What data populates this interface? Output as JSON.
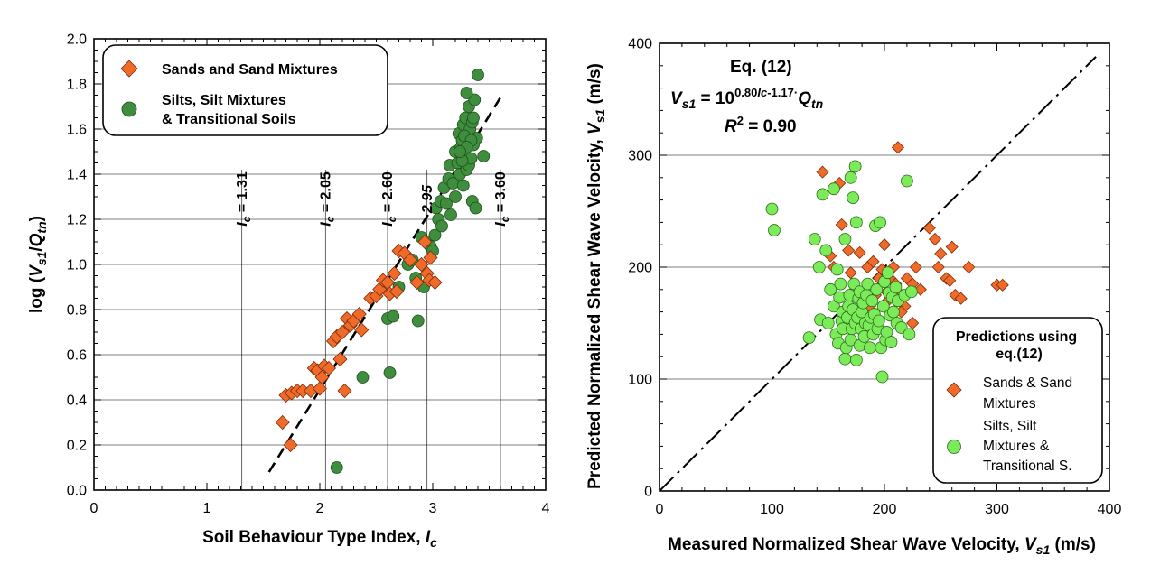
{
  "chart_data": [
    {
      "type": "scatter",
      "xlabel": "Soil Behaviour Type Index, ",
      "xlabel_sym": "I",
      "xlabel_sub": "c",
      "ylabel": "log (",
      "ylabel_sym": "V",
      "ylabel_sub": "s1",
      "ylabel_mid": "/",
      "ylabel_sym2": "Q",
      "ylabel_sub2": "tn",
      "ylabel_close": ")",
      "xlim": [
        0,
        4
      ],
      "ylim": [
        0,
        2
      ],
      "xticks": [
        "0",
        "1",
        "2",
        "3",
        "4"
      ],
      "yticks": [
        "0.0",
        "0.2",
        "0.4",
        "0.6",
        "0.8",
        "1.0",
        "1.2",
        "1.4",
        "1.6",
        "1.8",
        "2.0"
      ],
      "grid": "horizontal every 0.2 plus vertical lines at Ic boundaries",
      "legend_position": "top-left",
      "ic_lines": [
        {
          "x": 1.31,
          "label": "I",
          "sub": "c",
          "value": " = 1.31"
        },
        {
          "x": 2.05,
          "label": "I",
          "sub": "c",
          "value": " = 2.05"
        },
        {
          "x": 2.6,
          "label": "I",
          "sub": "c",
          "value": " = 2.60"
        },
        {
          "x": 2.95,
          "label": "",
          "sub": "",
          "value": "2.95"
        },
        {
          "x": 3.6,
          "label": "I",
          "sub": "c",
          "value": " = 3.60"
        }
      ],
      "trend_line": {
        "x": [
          1.55,
          3.6
        ],
        "y": [
          0.08,
          1.74
        ]
      },
      "series": [
        {
          "name": "Sands and Sand Mixtures",
          "marker": "diamond",
          "color": "#F06A2A",
          "points": [
            [
              1.67,
              0.3
            ],
            [
              1.7,
              0.42
            ],
            [
              1.74,
              0.2
            ],
            [
              1.75,
              0.43
            ],
            [
              1.8,
              0.44
            ],
            [
              1.85,
              0.44
            ],
            [
              1.92,
              0.44
            ],
            [
              1.95,
              0.54
            ],
            [
              1.98,
              0.53
            ],
            [
              2.0,
              0.45
            ],
            [
              2.02,
              0.5
            ],
            [
              2.04,
              0.55
            ],
            [
              2.08,
              0.54
            ],
            [
              2.12,
              0.66
            ],
            [
              2.15,
              0.68
            ],
            [
              2.18,
              0.58
            ],
            [
              2.2,
              0.7
            ],
            [
              2.22,
              0.44
            ],
            [
              2.24,
              0.76
            ],
            [
              2.27,
              0.73
            ],
            [
              2.3,
              0.75
            ],
            [
              2.35,
              0.78
            ],
            [
              2.37,
              0.71
            ],
            [
              2.45,
              0.85
            ],
            [
              2.5,
              0.86
            ],
            [
              2.53,
              0.89
            ],
            [
              2.56,
              0.93
            ],
            [
              2.6,
              0.92
            ],
            [
              2.62,
              0.87
            ],
            [
              2.66,
              0.96
            ],
            [
              2.68,
              0.88
            ],
            [
              2.7,
              1.06
            ],
            [
              2.75,
              1.05
            ],
            [
              2.8,
              1.02
            ],
            [
              2.86,
              0.92
            ],
            [
              2.9,
              1.0
            ],
            [
              2.93,
              1.1
            ],
            [
              2.95,
              0.96
            ],
            [
              2.97,
              0.93
            ],
            [
              2.98,
              1.03
            ],
            [
              3.02,
              0.92
            ]
          ]
        },
        {
          "name": "Silts, Silt Mixtures",
          "name2": "& Transitional Soils",
          "marker": "circle",
          "color": "#3E8E3E",
          "points": [
            [
              2.15,
              0.1
            ],
            [
              2.38,
              0.5
            ],
            [
              2.6,
              0.76
            ],
            [
              2.62,
              0.52
            ],
            [
              2.65,
              0.77
            ],
            [
              2.7,
              0.9
            ],
            [
              2.78,
              1.0
            ],
            [
              2.82,
              1.02
            ],
            [
              2.85,
              0.94
            ],
            [
              2.87,
              0.75
            ],
            [
              2.9,
              1.12
            ],
            [
              2.92,
              0.9
            ],
            [
              2.95,
              1.1
            ],
            [
              2.98,
              1.08
            ],
            [
              3.0,
              1.06
            ],
            [
              3.02,
              1.13
            ],
            [
              3.03,
              1.25
            ],
            [
              3.05,
              1.2
            ],
            [
              3.07,
              1.28
            ],
            [
              3.08,
              1.17
            ],
            [
              3.1,
              1.34
            ],
            [
              3.12,
              1.27
            ],
            [
              3.14,
              1.38
            ],
            [
              3.15,
              1.44
            ],
            [
              3.16,
              1.22
            ],
            [
              3.18,
              1.36
            ],
            [
              3.2,
              1.5
            ],
            [
              3.2,
              1.3
            ],
            [
              3.22,
              1.45
            ],
            [
              3.23,
              1.58
            ],
            [
              3.24,
              1.4
            ],
            [
              3.25,
              1.52
            ],
            [
              3.26,
              1.55
            ],
            [
              3.27,
              1.62
            ],
            [
              3.27,
              1.35
            ],
            [
              3.28,
              1.48
            ],
            [
              3.29,
              1.65
            ],
            [
              3.3,
              1.42
            ],
            [
              3.31,
              1.56
            ],
            [
              3.32,
              1.7
            ],
            [
              3.32,
              1.44
            ],
            [
              3.33,
              1.6
            ],
            [
              3.34,
              1.47
            ],
            [
              3.35,
              1.63
            ],
            [
              3.35,
              1.28
            ],
            [
              3.36,
              1.53
            ],
            [
              3.37,
              1.73
            ],
            [
              3.38,
              1.25
            ],
            [
              3.39,
              1.56
            ],
            [
              3.4,
              1.84
            ],
            [
              3.3,
              1.76
            ],
            [
              3.28,
              1.57
            ],
            [
              3.26,
              1.46
            ],
            [
              3.36,
              1.65
            ],
            [
              3.45,
              1.48
            ],
            [
              3.34,
              1.55
            ],
            [
              3.3,
              1.52
            ],
            [
              3.24,
              1.5
            ]
          ]
        }
      ]
    },
    {
      "type": "scatter",
      "xlabel": "Measured Normalized Shear Wave Velocity, ",
      "xlabel_sym": "V",
      "xlabel_sub": "s1",
      "xlabel_unit": " (m/s)",
      "ylabel": "Predicted Normalized Shear Wave Velocity, ",
      "ylabel_sym": "V",
      "ylabel_sub": "s1",
      "ylabel_unit": " (m/s)",
      "xlim": [
        0,
        400
      ],
      "ylim": [
        0,
        400
      ],
      "xticks": [
        "0",
        "100",
        "200",
        "300",
        "400"
      ],
      "yticks": [
        "0",
        "100",
        "200",
        "300",
        "400"
      ],
      "grid": "horizontal every 100",
      "one_to_one_line": true,
      "equation": {
        "title": "Eq. (12)",
        "lhs_sym": "V",
        "lhs_sub": "s1",
        "eq_main": " = 10",
        "eq_exp": "0.80",
        "eq_exp_sym": "Ic",
        "eq_exp_tail": "-1.17",
        "eq_dot": "·",
        "eq_q": "Q",
        "eq_q_sub": "tn",
        "r2_sym": "R",
        "r2_sup": "2",
        "r2_val": " = 0.90"
      },
      "legend_title": "Predictions using",
      "legend_title2": "eq.(12)",
      "legend_position": "bottom-right",
      "series": [
        {
          "name": "Sands & Sand",
          "name2": "Mixtures",
          "marker": "diamond",
          "color": "#F06A2A",
          "points": [
            [
              145,
              285
            ],
            [
              152,
              210
            ],
            [
              155,
              200
            ],
            [
              160,
              275
            ],
            [
              162,
              238
            ],
            [
              168,
              215
            ],
            [
              170,
              195
            ],
            [
              174,
              180
            ],
            [
              178,
              213
            ],
            [
              182,
              170
            ],
            [
              185,
              200
            ],
            [
              190,
              205
            ],
            [
              192,
              175
            ],
            [
              195,
              190
            ],
            [
              198,
              198
            ],
            [
              200,
              220
            ],
            [
              202,
              178
            ],
            [
              205,
              190
            ],
            [
              208,
              200
            ],
            [
              210,
              185
            ],
            [
              212,
              307
            ],
            [
              215,
              175
            ],
            [
              218,
              165
            ],
            [
              220,
              190
            ],
            [
              225,
              185
            ],
            [
              228,
              200
            ],
            [
              232,
              180
            ],
            [
              240,
              235
            ],
            [
              245,
              225
            ],
            [
              248,
              200
            ],
            [
              250,
              212
            ],
            [
              255,
              190
            ],
            [
              258,
              188
            ],
            [
              260,
              218
            ],
            [
              263,
              175
            ],
            [
              268,
              172
            ],
            [
              275,
              200
            ],
            [
              300,
              184
            ],
            [
              305,
              184
            ],
            [
              203,
              170
            ],
            [
              215,
              160
            ],
            [
              225,
              150
            ],
            [
              187,
              165
            ],
            [
              180,
              148
            ],
            [
              170,
              155
            ]
          ]
        },
        {
          "name": "Silts, Silt",
          "name2": "Mixtures &",
          "name3": "Transitional S.",
          "marker": "circle",
          "color": "#7CEB5A",
          "points": [
            [
              100,
              252
            ],
            [
              102,
              233
            ],
            [
              133,
              137
            ],
            [
              138,
              225
            ],
            [
              142,
              200
            ],
            [
              143,
              153
            ],
            [
              145,
              265
            ],
            [
              148,
              215
            ],
            [
              150,
              150
            ],
            [
              152,
              180
            ],
            [
              155,
              165
            ],
            [
              155,
              270
            ],
            [
              157,
              140
            ],
            [
              158,
              198
            ],
            [
              159,
              132
            ],
            [
              160,
              173
            ],
            [
              161,
              185
            ],
            [
              162,
              152
            ],
            [
              163,
              160
            ],
            [
              163,
              145
            ],
            [
              165,
              118
            ],
            [
              165,
              225
            ],
            [
              166,
              128
            ],
            [
              167,
              155
            ],
            [
              168,
              165
            ],
            [
              169,
              175
            ],
            [
              170,
              280
            ],
            [
              170,
              135
            ],
            [
              171,
              145
            ],
            [
              172,
              162
            ],
            [
              172,
              262
            ],
            [
              173,
              185
            ],
            [
              174,
              290
            ],
            [
              174,
              150
            ],
            [
              175,
              240
            ],
            [
              175,
              117
            ],
            [
              176,
              155
            ],
            [
              177,
              172
            ],
            [
              178,
              178
            ],
            [
              178,
              130
            ],
            [
              179,
              145
            ],
            [
              180,
              160
            ],
            [
              181,
              168
            ],
            [
              182,
              138
            ],
            [
              183,
              150
            ],
            [
              184,
              175
            ],
            [
              185,
              185
            ],
            [
              186,
              148
            ],
            [
              187,
              128
            ],
            [
              188,
              155
            ],
            [
              189,
              170
            ],
            [
              190,
              140
            ],
            [
              191,
              158
            ],
            [
              192,
              237
            ],
            [
              193,
              180
            ],
            [
              194,
              145
            ],
            [
              195,
              152
            ],
            [
              196,
              240
            ],
            [
              197,
              128
            ],
            [
              198,
              102
            ],
            [
              199,
              165
            ],
            [
              200,
              187
            ],
            [
              201,
              135
            ],
            [
              202,
              142
            ],
            [
              203,
              195
            ],
            [
              204,
              177
            ],
            [
              205,
              157
            ],
            [
              206,
              133
            ],
            [
              207,
              173
            ],
            [
              208,
              160
            ],
            [
              210,
              182
            ],
            [
              211,
              150
            ],
            [
              212,
              170
            ],
            [
              215,
              146
            ],
            [
              218,
              175
            ],
            [
              220,
              277
            ],
            [
              222,
              140
            ],
            [
              224,
              178
            ]
          ]
        }
      ]
    }
  ]
}
